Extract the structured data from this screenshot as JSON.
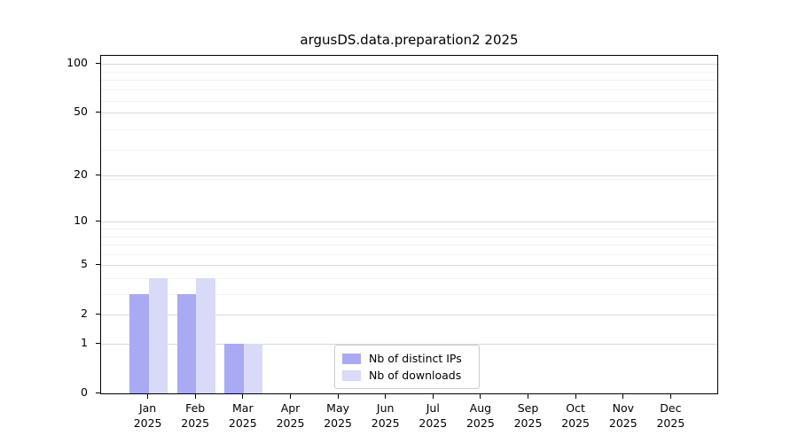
{
  "chart_data": {
    "type": "bar",
    "title": "argusDS.data.preparation2 2025",
    "categories": [
      "Jan",
      "Feb",
      "Mar",
      "Apr",
      "May",
      "Jun",
      "Jul",
      "Aug",
      "Sep",
      "Oct",
      "Nov",
      "Dec"
    ],
    "category_year": "2025",
    "series": [
      {
        "name": "Nb of distinct IPs",
        "color": "#a9a9f4",
        "values": [
          3,
          3,
          1,
          0,
          0,
          0,
          0,
          0,
          0,
          0,
          0,
          0
        ]
      },
      {
        "name": "Nb of downloads",
        "color": "#d9d9f8",
        "values": [
          4,
          4,
          1,
          0,
          0,
          0,
          0,
          0,
          0,
          0,
          0,
          0
        ]
      }
    ],
    "yscale": "log1p",
    "ylim": [
      0,
      111
    ],
    "yticks": [
      0,
      1,
      2,
      5,
      10,
      20,
      50,
      100
    ],
    "minor_gridlines": [
      3,
      4,
      6,
      7,
      8,
      9,
      19,
      29,
      39,
      59,
      69,
      79,
      89
    ],
    "grid": "horizontal",
    "legend_position": "lower center"
  },
  "colors": {
    "major_grid": "#d9d9d9",
    "minor_grid": "#f2f2f2",
    "axis": "#000000",
    "background": "#ffffff",
    "legend_border": "#cccccc"
  }
}
